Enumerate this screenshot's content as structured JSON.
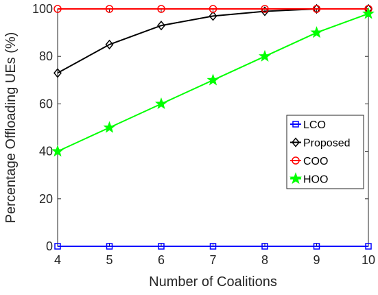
{
  "chart_data": {
    "type": "line",
    "xlabel": "Number of Coalitions",
    "ylabel": "Percentage Offloading UEs (%)",
    "xlim": [
      4,
      10
    ],
    "ylim": [
      0,
      100
    ],
    "x_ticks": [
      4,
      5,
      6,
      7,
      8,
      9,
      10
    ],
    "y_ticks": [
      0,
      20,
      40,
      60,
      80,
      100
    ],
    "grid": false,
    "legend_position": "right",
    "x": [
      4,
      5,
      6,
      7,
      8,
      9,
      10
    ],
    "series": [
      {
        "name": "LCO",
        "values": [
          0,
          0,
          0,
          0,
          0,
          0,
          0
        ],
        "color": "#0000ff",
        "marker": "square"
      },
      {
        "name": "Proposed",
        "values": [
          73,
          85,
          93,
          97,
          99,
          100,
          100
        ],
        "color": "#000000",
        "marker": "diamond"
      },
      {
        "name": "COO",
        "values": [
          100,
          100,
          100,
          100,
          100,
          100,
          100
        ],
        "color": "#ff0000",
        "marker": "circle"
      },
      {
        "name": "HOO",
        "values": [
          40,
          50,
          60,
          70,
          80,
          90,
          98
        ],
        "color": "#00ff00",
        "marker": "star"
      }
    ]
  }
}
